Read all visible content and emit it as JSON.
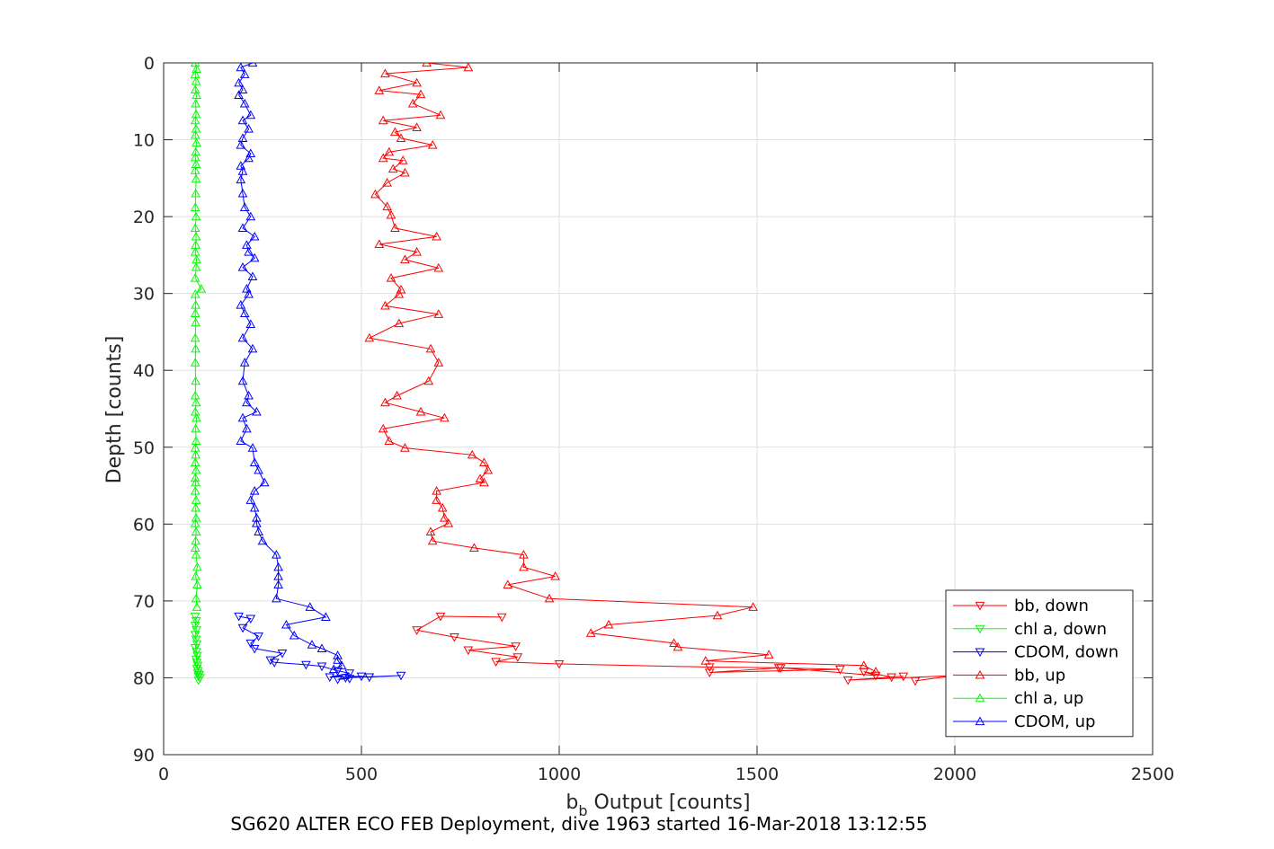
{
  "chart_data": {
    "type": "line",
    "xlabel_main": "b",
    "xlabel_sub": "b",
    "xlabel_rest": " Output [counts]",
    "ylabel": "Depth [counts]",
    "caption": "SG620 ALTER ECO FEB Deployment, dive 1963 started 16-Mar-2018 13:12:55",
    "xlim": [
      0,
      2500
    ],
    "ylim": [
      0,
      90
    ],
    "y_reversed": true,
    "grid": true,
    "legend_position": "bottom-right",
    "x_ticks": [
      "0",
      "500",
      "1000",
      "1500",
      "2000",
      "2500"
    ],
    "y_ticks": [
      "0",
      "10",
      "20",
      "30",
      "40",
      "50",
      "60",
      "70",
      "80",
      "90"
    ],
    "x_tick_values": [
      0,
      500,
      1000,
      1500,
      2000,
      2500
    ],
    "y_tick_values": [
      0,
      10,
      20,
      30,
      40,
      50,
      60,
      70,
      80,
      90
    ],
    "series": [
      {
        "name": "bb, down",
        "color": "#ff0000",
        "marker": "triangle-down",
        "points": [
          [
            855,
            72.1
          ],
          [
            700,
            72.0
          ],
          [
            640,
            73.8
          ],
          [
            735,
            74.7
          ],
          [
            890,
            75.9
          ],
          [
            770,
            76.4
          ],
          [
            895,
            77.3
          ],
          [
            840,
            77.9
          ],
          [
            1000,
            78.2
          ],
          [
            1380,
            78.6
          ],
          [
            1555,
            78.7
          ],
          [
            1710,
            78.9
          ],
          [
            1380,
            79.3
          ],
          [
            1560,
            78.7
          ],
          [
            1800,
            79.7
          ],
          [
            1770,
            79.2
          ],
          [
            1840,
            79.9
          ],
          [
            1870,
            79.8
          ],
          [
            1730,
            80.3
          ],
          [
            2000,
            79.7
          ],
          [
            1900,
            80.4
          ]
        ]
      },
      {
        "name": "chl a, down",
        "color": "#00ff00",
        "marker": "triangle-down",
        "points": [
          [
            80,
            72.0
          ],
          [
            82,
            72.6
          ],
          [
            80,
            73.2
          ],
          [
            83,
            73.8
          ],
          [
            80,
            74.4
          ],
          [
            82,
            75.0
          ],
          [
            84,
            75.6
          ],
          [
            80,
            76.1
          ],
          [
            83,
            76.6
          ],
          [
            85,
            77.1
          ],
          [
            82,
            77.6
          ],
          [
            84,
            78.0
          ],
          [
            86,
            78.4
          ],
          [
            84,
            78.8
          ],
          [
            87,
            79.1
          ],
          [
            86,
            79.4
          ],
          [
            90,
            79.6
          ],
          [
            88,
            79.8
          ],
          [
            92,
            80.0
          ],
          [
            88,
            80.3
          ]
        ]
      },
      {
        "name": "CDOM, down",
        "color": "#0000ff",
        "marker": "triangle-down",
        "points": [
          [
            190,
            72.0
          ],
          [
            220,
            72.3
          ],
          [
            200,
            73.5
          ],
          [
            240,
            74.6
          ],
          [
            220,
            75.5
          ],
          [
            230,
            76.2
          ],
          [
            300,
            76.8
          ],
          [
            270,
            77.7
          ],
          [
            280,
            78.0
          ],
          [
            360,
            78.3
          ],
          [
            400,
            78.5
          ],
          [
            440,
            79.1
          ],
          [
            470,
            79.4
          ],
          [
            420,
            79.9
          ],
          [
            500,
            79.8
          ],
          [
            520,
            79.9
          ],
          [
            600,
            79.7
          ],
          [
            460,
            80.0
          ],
          [
            440,
            80.2
          ],
          [
            470,
            80.1
          ]
        ]
      },
      {
        "name": "bb, up",
        "color": "#ff0000",
        "marker": "triangle-up",
        "points": [
          [
            665,
            0.0
          ],
          [
            770,
            0.6
          ],
          [
            560,
            1.4
          ],
          [
            640,
            2.6
          ],
          [
            545,
            3.6
          ],
          [
            650,
            4.1
          ],
          [
            630,
            5.3
          ],
          [
            700,
            6.8
          ],
          [
            555,
            7.5
          ],
          [
            640,
            8.4
          ],
          [
            585,
            9.0
          ],
          [
            600,
            9.8
          ],
          [
            680,
            10.7
          ],
          [
            570,
            11.6
          ],
          [
            555,
            12.4
          ],
          [
            605,
            12.7
          ],
          [
            580,
            13.8
          ],
          [
            610,
            14.3
          ],
          [
            565,
            15.6
          ],
          [
            535,
            17.1
          ],
          [
            565,
            18.7
          ],
          [
            575,
            19.8
          ],
          [
            585,
            21.5
          ],
          [
            690,
            22.6
          ],
          [
            545,
            23.6
          ],
          [
            640,
            24.6
          ],
          [
            610,
            25.6
          ],
          [
            695,
            26.7
          ],
          [
            575,
            28.0
          ],
          [
            600,
            29.5
          ],
          [
            595,
            30.1
          ],
          [
            560,
            31.6
          ],
          [
            695,
            32.7
          ],
          [
            595,
            33.9
          ],
          [
            520,
            35.8
          ],
          [
            675,
            37.2
          ],
          [
            695,
            39.0
          ],
          [
            670,
            41.4
          ],
          [
            590,
            43.3
          ],
          [
            560,
            44.2
          ],
          [
            650,
            45.4
          ],
          [
            710,
            46.2
          ],
          [
            555,
            47.6
          ],
          [
            570,
            49.2
          ],
          [
            610,
            50.1
          ],
          [
            780,
            51.0
          ],
          [
            810,
            52.0
          ],
          [
            820,
            53.0
          ],
          [
            800,
            54.1
          ],
          [
            810,
            54.6
          ],
          [
            690,
            55.7
          ],
          [
            690,
            56.9
          ],
          [
            705,
            57.9
          ],
          [
            710,
            59.2
          ],
          [
            720,
            59.9
          ],
          [
            675,
            61.0
          ],
          [
            680,
            62.2
          ],
          [
            785,
            63.1
          ],
          [
            910,
            64.0
          ],
          [
            910,
            65.6
          ],
          [
            990,
            66.8
          ],
          [
            870,
            67.9
          ],
          [
            975,
            69.7
          ],
          [
            1490,
            70.8
          ],
          [
            1400,
            71.9
          ],
          [
            1125,
            73.1
          ],
          [
            1080,
            74.2
          ],
          [
            1290,
            75.5
          ],
          [
            1300,
            76.0
          ],
          [
            1530,
            77.0
          ],
          [
            1370,
            77.8
          ],
          [
            1770,
            78.4
          ],
          [
            1800,
            79.2
          ]
        ]
      },
      {
        "name": "chl a, up",
        "color": "#00ff00",
        "marker": "triangle-up",
        "points": [
          [
            80,
            0.0
          ],
          [
            83,
            0.8
          ],
          [
            80,
            1.5
          ],
          [
            82,
            2.4
          ],
          [
            80,
            3.5
          ],
          [
            83,
            4.2
          ],
          [
            81,
            5.3
          ],
          [
            82,
            6.7
          ],
          [
            80,
            7.5
          ],
          [
            82,
            8.6
          ],
          [
            80,
            9.4
          ],
          [
            83,
            10.4
          ],
          [
            81,
            11.6
          ],
          [
            80,
            12.3
          ],
          [
            82,
            13.2
          ],
          [
            80,
            14.0
          ],
          [
            82,
            15.1
          ],
          [
            81,
            17.0
          ],
          [
            80,
            18.8
          ],
          [
            82,
            20.0
          ],
          [
            80,
            21.5
          ],
          [
            82,
            22.6
          ],
          [
            81,
            23.7
          ],
          [
            80,
            24.6
          ],
          [
            83,
            25.6
          ],
          [
            82,
            26.6
          ],
          [
            80,
            28.0
          ],
          [
            95,
            29.4
          ],
          [
            80,
            30.1
          ],
          [
            81,
            31.5
          ],
          [
            80,
            32.6
          ],
          [
            81,
            33.8
          ],
          [
            80,
            35.8
          ],
          [
            81,
            37.2
          ],
          [
            80,
            39.0
          ],
          [
            81,
            41.4
          ],
          [
            80,
            43.3
          ],
          [
            82,
            44.2
          ],
          [
            80,
            45.4
          ],
          [
            83,
            46.2
          ],
          [
            81,
            47.6
          ],
          [
            82,
            49.2
          ],
          [
            80,
            50.1
          ],
          [
            81,
            51.0
          ],
          [
            80,
            52.0
          ],
          [
            82,
            53.0
          ],
          [
            80,
            54.0
          ],
          [
            81,
            54.6
          ],
          [
            80,
            55.7
          ],
          [
            82,
            56.9
          ],
          [
            81,
            57.9
          ],
          [
            82,
            59.2
          ],
          [
            80,
            59.9
          ],
          [
            82,
            61.0
          ],
          [
            81,
            62.2
          ],
          [
            80,
            63.1
          ],
          [
            82,
            64.0
          ],
          [
            85,
            65.6
          ],
          [
            81,
            66.8
          ],
          [
            85,
            67.9
          ],
          [
            82,
            69.7
          ],
          [
            84,
            70.8
          ]
        ]
      },
      {
        "name": "CDOM, up",
        "color": "#0000ff",
        "marker": "triangle-up",
        "points": [
          [
            225,
            0.0
          ],
          [
            195,
            0.6
          ],
          [
            205,
            1.5
          ],
          [
            190,
            2.6
          ],
          [
            200,
            3.5
          ],
          [
            190,
            4.2
          ],
          [
            205,
            5.3
          ],
          [
            220,
            6.8
          ],
          [
            200,
            7.5
          ],
          [
            215,
            8.6
          ],
          [
            200,
            9.8
          ],
          [
            195,
            10.7
          ],
          [
            220,
            11.8
          ],
          [
            215,
            12.4
          ],
          [
            195,
            13.4
          ],
          [
            200,
            14.1
          ],
          [
            195,
            15.2
          ],
          [
            200,
            17.0
          ],
          [
            205,
            18.8
          ],
          [
            220,
            20.0
          ],
          [
            200,
            21.5
          ],
          [
            230,
            22.6
          ],
          [
            210,
            23.7
          ],
          [
            215,
            24.6
          ],
          [
            230,
            25.4
          ],
          [
            200,
            26.6
          ],
          [
            225,
            27.8
          ],
          [
            210,
            29.4
          ],
          [
            215,
            30.1
          ],
          [
            195,
            31.5
          ],
          [
            205,
            32.6
          ],
          [
            220,
            34.0
          ],
          [
            200,
            35.8
          ],
          [
            225,
            37.2
          ],
          [
            205,
            39.0
          ],
          [
            200,
            41.4
          ],
          [
            215,
            43.3
          ],
          [
            210,
            44.2
          ],
          [
            235,
            45.4
          ],
          [
            200,
            46.2
          ],
          [
            210,
            47.6
          ],
          [
            195,
            49.2
          ],
          [
            225,
            50.1
          ],
          [
            230,
            52.0
          ],
          [
            240,
            53.0
          ],
          [
            255,
            54.6
          ],
          [
            230,
            55.7
          ],
          [
            220,
            56.9
          ],
          [
            230,
            57.9
          ],
          [
            235,
            59.2
          ],
          [
            235,
            59.9
          ],
          [
            240,
            61.0
          ],
          [
            250,
            62.2
          ],
          [
            285,
            64.0
          ],
          [
            290,
            65.6
          ],
          [
            290,
            66.8
          ],
          [
            290,
            67.9
          ],
          [
            285,
            69.7
          ],
          [
            370,
            70.8
          ],
          [
            410,
            72.1
          ],
          [
            310,
            73.1
          ],
          [
            330,
            74.5
          ],
          [
            375,
            75.7
          ],
          [
            400,
            76.2
          ],
          [
            440,
            77.1
          ],
          [
            440,
            77.7
          ],
          [
            450,
            78.4
          ],
          [
            430,
            78.9
          ]
        ]
      }
    ]
  }
}
